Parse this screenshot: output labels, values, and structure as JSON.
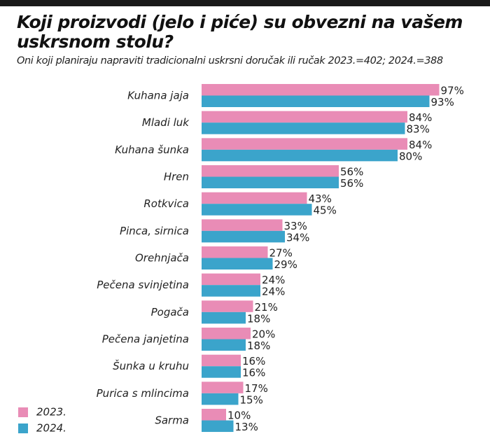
{
  "chart_data": {
    "type": "bar",
    "orientation": "horizontal",
    "title": "Koji proizvodi (jelo i piće) su obvezni na vašem uskrsnom stolu?",
    "subtitle": "Oni koji planiraju napraviti tradicionalni uskrsni doručak ili ručak 2023.=402; 2024.=388",
    "categories": [
      "Kuhana jaja",
      "Mladi luk",
      "Kuhana šunka",
      "Hren",
      "Rotkvica",
      "Pinca, sirnica",
      "Orehnjača",
      "Pečena svinjetina",
      "Pogača",
      "Pečena janjetina",
      "Šunka u kruhu",
      "Purica s mlincima",
      "Sarma"
    ],
    "series": [
      {
        "name": "2023.",
        "color": "#e98cb6",
        "values": [
          97,
          84,
          84,
          56,
          43,
          33,
          27,
          24,
          21,
          20,
          16,
          17,
          10
        ]
      },
      {
        "name": "2024.",
        "color": "#3ba4cb",
        "values": [
          93,
          83,
          80,
          56,
          45,
          34,
          29,
          24,
          18,
          18,
          16,
          15,
          13
        ]
      }
    ],
    "unit": "%",
    "xlim": [
      0,
      100
    ],
    "legend_position": "bottom-left",
    "grid": false
  }
}
